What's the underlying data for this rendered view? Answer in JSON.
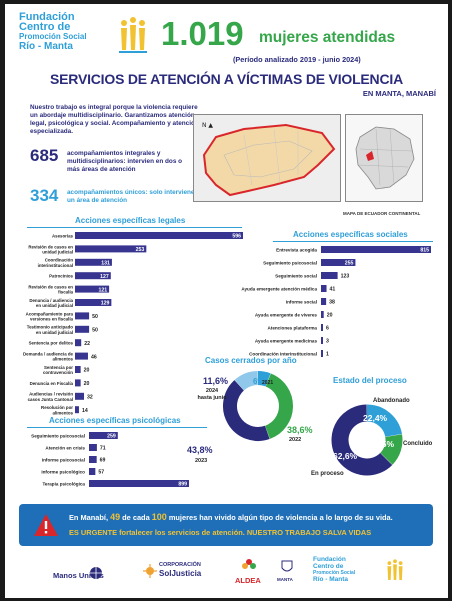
{
  "header": {
    "org_name_l1": "Fundación",
    "org_name_l2": "Centro de",
    "org_name_l3": "Promoción Social",
    "org_name_l4": "Río - Manta",
    "big_number": "1.019",
    "big_label": "mujeres atendidas",
    "period": "(Período analizado 2019 - junio 2024)",
    "title": "SERVICIOS DE ATENCIÓN A VÍCTIMAS DE VIOLENCIA",
    "subtitle": "EN MANTA, MANABÍ"
  },
  "intro": {
    "text": "Nuestro trabajo es integral porque la violencia requiere un abordaje multidisciplinario. Garantizamos atención legal, psicológica y social. Acompañamiento y atención especializada.",
    "stat1_num": "685",
    "stat1_label": "acompañamientos integrales y multidisciplinarios: intervien en dos o más áreas de atención",
    "stat2_num": "334",
    "stat2_label": "acompañamientos únicos: solo interviene un área de atención"
  },
  "map": {
    "caption": "MAPA DE ECUADOR CONTINENTAL",
    "colors": {
      "region": "#f3d9a8",
      "border": "#d9262b",
      "land": "#d9d9d9"
    }
  },
  "colors": {
    "navy": "#2b2b7c",
    "green": "#35a64a",
    "blue": "#2f9fd8",
    "bar": "#37358f",
    "alert_bg": "#1f6fb8",
    "alert_hl": "#f1c232",
    "danger": "#d9262b"
  },
  "chart_data": [
    {
      "type": "bar",
      "title": "Acciones específicas legales",
      "categories": [
        "Asesorías",
        "Revisión de casos en unidad judicial",
        "Coordinación interinstitucional",
        "Patrocinios",
        "Revisión de casos en fiscalía",
        "Denuncia / audiencia en unidad judicial",
        "Acompañamiento para versiones en fiscalía",
        "Testimonio anticipado en unidad judicial",
        "Sentencia por delitos",
        "Demanda / audiencia de alimentos",
        "Sentencia por contravención",
        "Denuncia en Fiscalía",
        "Audiencias / revisión casos Junta Cantonal",
        "Resolución por alimentos"
      ],
      "values": [
        596,
        253,
        131,
        127,
        121,
        129,
        50,
        50,
        22,
        46,
        20,
        20,
        32,
        14
      ]
    },
    {
      "type": "bar",
      "title": "Acciones específicas sociales",
      "categories": [
        "Entrevista acogida",
        "Seguimiento psicosocial",
        "Seguimiento social",
        "Ayuda emergente atención médica",
        "Informe social",
        "Ayuda emergente de víveres",
        "Atenciones plataforma",
        "Ayuda emergente medicinas",
        "Coordinación interinstitucional"
      ],
      "values": [
        815,
        255,
        123,
        41,
        38,
        20,
        6,
        3,
        1
      ]
    },
    {
      "type": "bar",
      "title": "Acciones específicas psicológicas",
      "categories": [
        "Seguimiento psicosocial",
        "Atención en crisis",
        "Informe psicosocial",
        "Informe psicológico",
        "Terapia psicológica"
      ],
      "values": [
        259,
        71,
        69,
        57,
        899
      ]
    },
    {
      "type": "pie",
      "title": "Casos cerrados por año",
      "labels": [
        "2021",
        "2022",
        "2023",
        "2024 hasta junio"
      ],
      "values": [
        6,
        38.6,
        43.8,
        11.6
      ],
      "value_labels": [
        "6%",
        "38,6%",
        "43,8%",
        "11,6%"
      ],
      "colors": [
        "#2f9fd8",
        "#35a64a",
        "#2b2b7c",
        "#8fc8ea"
      ]
    },
    {
      "type": "pie",
      "title": "Estado del proceso",
      "labels": [
        "Abandonado",
        "Concluido",
        "En proceso"
      ],
      "values": [
        22.4,
        15,
        62.6
      ],
      "value_labels": [
        "22,4%",
        "15%",
        "62,6%"
      ],
      "colors": [
        "#2f9fd8",
        "#35a64a",
        "#2b2b7c"
      ]
    }
  ],
  "alert": {
    "l1_pre": "En Manabí,",
    "l1_num1": "49",
    "l1_mid": "de cada",
    "l1_num2": "100",
    "l1_post": "mujeres han vivido algún tipo de violencia a lo largo de su vida.",
    "l2": "ES URGENTE fortalecer los servicios de atención. NUESTRO TRABAJO SALVA VIDAS"
  },
  "footer": {
    "logo1": "Manos Unidas",
    "logo2_l1": "CORPORACIÓN",
    "logo2_l2": "SolJusticia",
    "logo3": "ALDEA",
    "logo4": "MANTA",
    "logo5_l1": "Fundación",
    "logo5_l2": "Centro de",
    "logo5_l3": "Promoción Social",
    "logo5_l4": "Río - Manta"
  }
}
